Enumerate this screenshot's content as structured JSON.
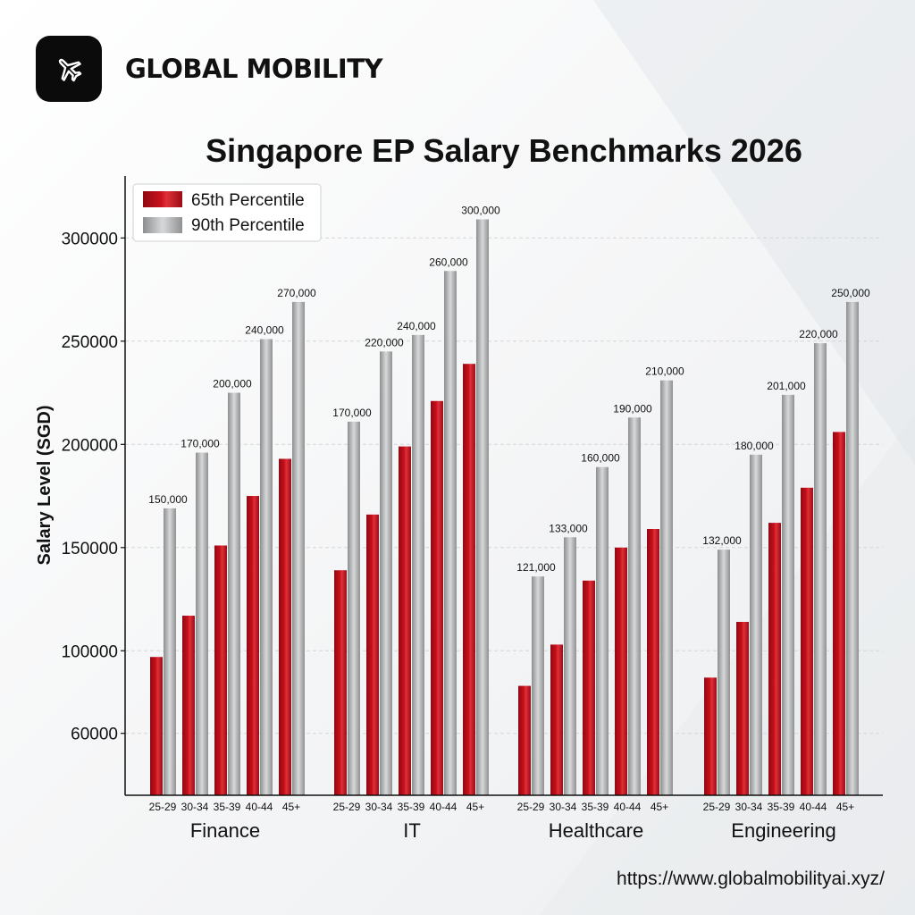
{
  "brand": {
    "name": "GLOBAL MOBILITY",
    "icon": "airplane-icon"
  },
  "footer": {
    "url": "https://www.globalmobilityai.xyz/"
  },
  "colors": {
    "series_65": "#c8101c",
    "series_90": "#a6a8aa",
    "axis": "#111111",
    "grid": "#d3d5d8"
  },
  "chart_data": {
    "type": "bar",
    "title": "Singapore EP Salary Benchmarks 2026",
    "ylabel": "Salary Level (SGD)",
    "xlabel": "",
    "ylim": [
      30000,
      330000
    ],
    "yticks": [
      60000,
      100000,
      150000,
      200000,
      250000,
      300000
    ],
    "grid": true,
    "legend_position": "top-left",
    "groups": [
      "Finance",
      "IT",
      "Healthcare",
      "Engineering"
    ],
    "categories": [
      "25-29",
      "30-34",
      "35-39",
      "40-44",
      "45+"
    ],
    "series": [
      {
        "name": "65th Percentile",
        "values": [
          [
            97000,
            117000,
            151000,
            175000,
            193000
          ],
          [
            139000,
            166000,
            199000,
            221000,
            239000
          ],
          [
            83000,
            103000,
            134000,
            150000,
            159000
          ],
          [
            87000,
            114000,
            162000,
            179000,
            206000
          ]
        ]
      },
      {
        "name": "90th Percentile",
        "values": [
          [
            169000,
            196000,
            225000,
            251000,
            269000
          ],
          [
            211000,
            245000,
            253000,
            284000,
            309000
          ],
          [
            136000,
            155000,
            189000,
            213000,
            231000
          ],
          [
            149000,
            195000,
            224000,
            249000,
            269000
          ]
        ]
      }
    ],
    "data_labels": [
      [
        "150,000",
        "170,000",
        "200,000",
        "240,000",
        "270,000"
      ],
      [
        "170,000",
        "220,000",
        "240,000",
        "260,000",
        "300,000"
      ],
      [
        "121,000",
        "133,000",
        "160,000",
        "190,000",
        "210,000"
      ],
      [
        "132,000",
        "180,000",
        "201,000",
        "220,000",
        "250,000"
      ]
    ]
  }
}
